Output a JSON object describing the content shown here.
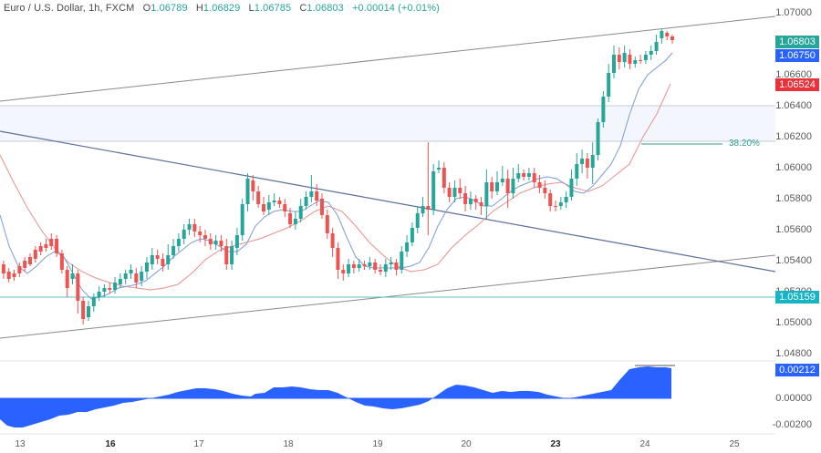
{
  "header": {
    "symbol": "Euro / U.S. Dollar, 1h, FXCM",
    "open_label": "O",
    "open": "1.06789",
    "high_label": "H",
    "high": "1.06829",
    "low_label": "L",
    "low": "1.06785",
    "close_label": "C",
    "close": "1.06803",
    "change": "+0.00014 (+0.01%)"
  },
  "price_axis": {
    "ticks": [
      "1.07000",
      "1.06600",
      "1.06400",
      "1.06200",
      "1.06000",
      "1.05800",
      "1.05600",
      "1.05400",
      "1.05200",
      "1.05000",
      "1.04800"
    ],
    "badges": {
      "last_price": {
        "value": "1.06803",
        "color": "#26a69a"
      },
      "fast_ma": {
        "value": "1.06750",
        "color": "#2962ff"
      },
      "slow_ma": {
        "value": "1.06524",
        "color": "#e8323c"
      },
      "support_line": {
        "value": "1.05159",
        "color": "#17b4c4"
      }
    }
  },
  "oscillator_axis": {
    "ticks": [
      "0.00000",
      "-0.00200"
    ],
    "badge": {
      "value": "0.00212",
      "color": "#2962ff"
    }
  },
  "time_axis": {
    "labels": [
      {
        "text": "13",
        "bold": false
      },
      {
        "text": "16",
        "bold": true
      },
      {
        "text": "17",
        "bold": false
      },
      {
        "text": "18",
        "bold": false
      },
      {
        "text": "19",
        "bold": false
      },
      {
        "text": "20",
        "bold": false
      },
      {
        "text": "23",
        "bold": true
      },
      {
        "text": "24",
        "bold": false
      },
      {
        "text": "25",
        "bold": false
      }
    ]
  },
  "annotations": {
    "fib_label": "38.20%"
  },
  "colors": {
    "up": "#26a69a",
    "down": "#ef5350",
    "fast_ma": "#7b9bd8",
    "slow_ma": "#e69191",
    "trendline": "#5b6f9c",
    "channel": "#8a8a8a",
    "support": "#5bbcc8",
    "zone_fill": "#f3f6fc",
    "oscillator": "#2962ff"
  },
  "chart_data": [
    {
      "type": "candlestick",
      "title": "Euro / U.S. Dollar, 1h, FXCM",
      "xlabel": "",
      "ylabel": "",
      "x_ticks": [
        "13",
        "16",
        "17",
        "18",
        "19",
        "20",
        "23",
        "24",
        "25"
      ],
      "ylim": [
        1.0475,
        1.0705
      ],
      "ohlc_last": {
        "open": 1.06789,
        "high": 1.06829,
        "low": 1.06785,
        "close": 1.06803
      },
      "approx_closes_by_day": {
        "13": [
          1.053,
          1.0555,
          1.054
        ],
        "16": [
          1.05,
          1.052,
          1.0535
        ],
        "17": [
          1.0555,
          1.0545,
          1.054
        ],
        "18": [
          1.059,
          1.0575,
          1.0585,
          1.057
        ],
        "19": [
          1.054,
          1.053,
          1.0532
        ],
        "20": [
          1.06,
          1.0585,
          1.058,
          1.059
        ],
        "23": [
          1.0575,
          1.06,
          1.065
        ],
        "24": [
          1.067,
          1.0672,
          1.068
        ]
      },
      "moving_averages": [
        {
          "name": "fast MA",
          "last": 1.0675,
          "color": "#2962ff"
        },
        {
          "name": "slow MA",
          "last": 1.06524,
          "color": "#e8323c"
        }
      ],
      "lines": [
        {
          "name": "upper channel line",
          "from": [
            0,
            1.0643
          ],
          "to": [
            850,
            1.0698
          ]
        },
        {
          "name": "lower channel line",
          "from": [
            0,
            1.049
          ],
          "to": [
            850,
            1.0545
          ]
        },
        {
          "name": "descending trendline",
          "from": [
            0,
            1.0623
          ],
          "to": [
            850,
            1.0532
          ]
        },
        {
          "name": "horizontal support",
          "value": 1.05159
        },
        {
          "name": "resistance zone",
          "from": 1.0617,
          "to": 1.064
        },
        {
          "name": "fib 38.20%",
          "value": 1.0615
        }
      ],
      "legend": [
        "O1.06789",
        "H1.06829",
        "L1.06785",
        "C1.06803",
        "+0.00014 (+0.01%)"
      ]
    },
    {
      "type": "area",
      "title": "Oscillator",
      "ylim": [
        -0.003,
        0.0025
      ],
      "last": 0.00212,
      "y_ticks": [
        "0.00212",
        "0.00000",
        "-0.00200"
      ],
      "approx_values": [
        -0.0018,
        -0.0019,
        -0.0012,
        -0.0009,
        -0.0011,
        -0.0008,
        -0.0005,
        -0.0002,
        0.0001,
        0.0006,
        0.0005,
        0.0002,
        0.0006,
        0.0005,
        -0.0003,
        -0.0005,
        -0.0005,
        0.0002,
        0.0007,
        0.0004,
        0.0004,
        0.0004,
        0.0001,
        0.0003,
        0.0006,
        0.0021,
        0.0021
      ]
    }
  ]
}
